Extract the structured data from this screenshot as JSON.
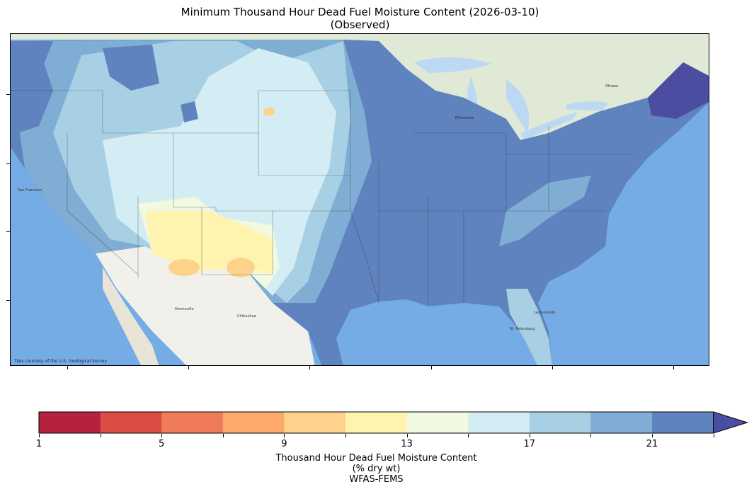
{
  "title_line1": "Minimum Thousand Hour Dead Fuel Moisture Content (2026-03-10)",
  "title_line2": "(Observed)",
  "attribution": "Tiles courtesy of the U.S. Geological Survey",
  "colorbar": {
    "label_line1": "Thousand Hour Dead Fuel Moisture Content",
    "label_line2": "(% dry wt)",
    "label_line3": "WFAS-FEMS",
    "ticks": [
      "1",
      "5",
      "9",
      "13",
      "17",
      "21"
    ],
    "colors": [
      "#b5213f",
      "#dc4b44",
      "#f07b5b",
      "#fbaa6c",
      "#fdd38c",
      "#fff3b0",
      "#f1f9e0",
      "#d4ecf3",
      "#a8d0e4",
      "#7fadd3",
      "#5f83bf",
      "#4b4ea0"
    ]
  },
  "map": {
    "cities": [
      "San Francisco",
      "Milwaukee",
      "Ottawa",
      "Jacksonville",
      "St. Petersburg",
      "Chihuahua",
      "Hermosillo"
    ]
  }
}
